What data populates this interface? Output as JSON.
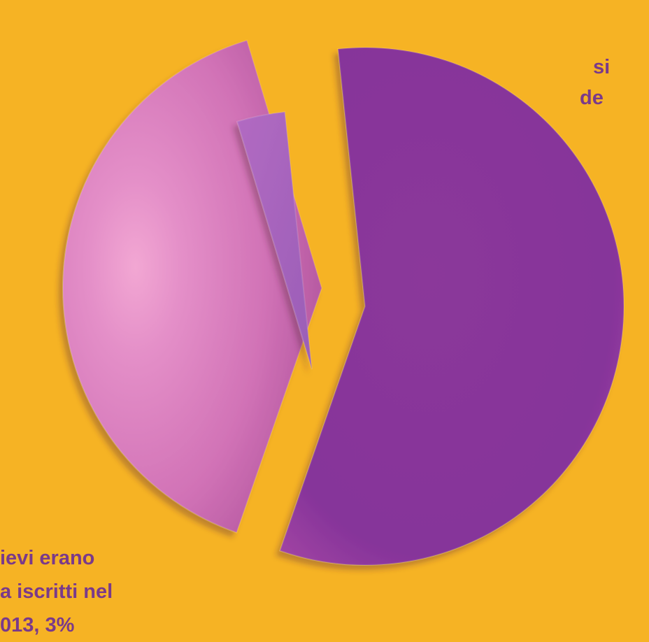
{
  "chart_data": {
    "type": "pie",
    "title": "",
    "series": [
      {
        "values": [
          57,
          40,
          3
        ],
        "colors": [
          "#8A3597",
          "#D56EB5",
          "#A86BC0"
        ]
      }
    ],
    "categories": [
      "",
      "",
      ""
    ],
    "annotations": {
      "right_fragment": [
        "si",
        "de"
      ],
      "left_fragment": [
        "ievi erano",
        "a iscritti nel",
        "013, 3%"
      ]
    }
  }
}
